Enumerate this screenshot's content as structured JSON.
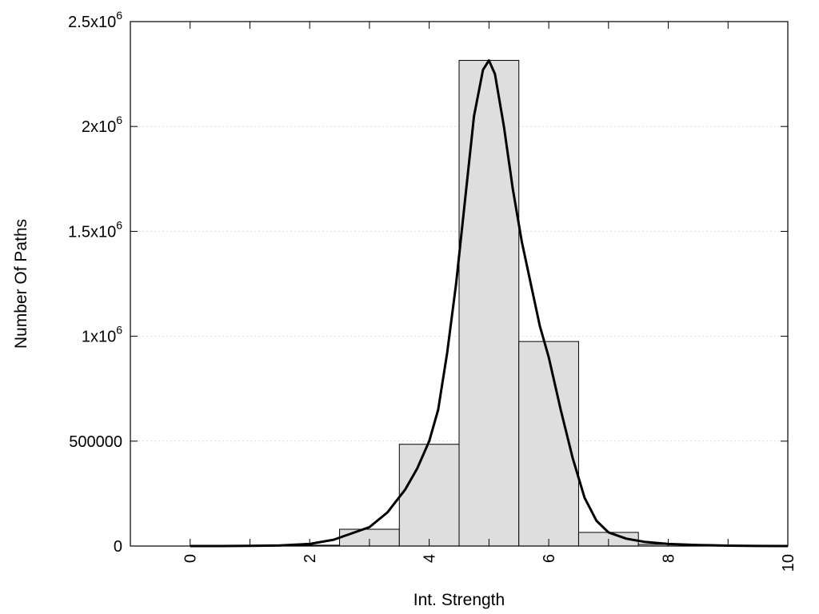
{
  "chart_data": {
    "type": "bar",
    "xlabel": "Int. Strength",
    "ylabel": "Number Of Paths",
    "xlim": [
      -1,
      10
    ],
    "ylim": [
      0,
      2500000
    ],
    "grid": true,
    "x_ticks": [
      {
        "value": 0,
        "label": "0"
      },
      {
        "value": 2,
        "label": "2"
      },
      {
        "value": 4,
        "label": "4"
      },
      {
        "value": 6,
        "label": "6"
      },
      {
        "value": 8,
        "label": "8"
      },
      {
        "value": 10,
        "label": "10"
      }
    ],
    "y_ticks": [
      {
        "value": 0,
        "mantissa": "0",
        "exponent": ""
      },
      {
        "value": 500000,
        "mantissa": "500000",
        "exponent": ""
      },
      {
        "value": 1000000,
        "mantissa": "1x10",
        "exponent": "6"
      },
      {
        "value": 1500000,
        "mantissa": "1.5x10",
        "exponent": "6"
      },
      {
        "value": 2000000,
        "mantissa": "2x10",
        "exponent": "6"
      },
      {
        "value": 2500000,
        "mantissa": "2.5x10",
        "exponent": "6"
      }
    ],
    "bars": {
      "x": [
        0,
        1,
        2,
        3,
        4,
        5,
        6,
        7,
        8,
        9
      ],
      "values": [
        0,
        1000,
        4000,
        80000,
        485000,
        2315000,
        975000,
        65000,
        8000,
        1000
      ]
    },
    "fit_curve": {
      "x": [
        0,
        0.5,
        1,
        1.5,
        2,
        2.4,
        2.7,
        3,
        3.3,
        3.6,
        3.8,
        4,
        4.15,
        4.3,
        4.45,
        4.6,
        4.75,
        4.9,
        5,
        5.1,
        5.25,
        5.4,
        5.55,
        5.7,
        5.85,
        6,
        6.2,
        6.4,
        6.6,
        6.8,
        7,
        7.3,
        7.6,
        8,
        8.5,
        9,
        9.5,
        10
      ],
      "y": [
        0,
        0,
        1000,
        3000,
        10000,
        30000,
        60000,
        90000,
        160000,
        270000,
        370000,
        500000,
        650000,
        920000,
        1250000,
        1650000,
        2050000,
        2270000,
        2315000,
        2250000,
        2000000,
        1700000,
        1450000,
        1250000,
        1050000,
        900000,
        650000,
        420000,
        230000,
        120000,
        65000,
        35000,
        20000,
        10000,
        5000,
        2000,
        500,
        0
      ]
    }
  }
}
